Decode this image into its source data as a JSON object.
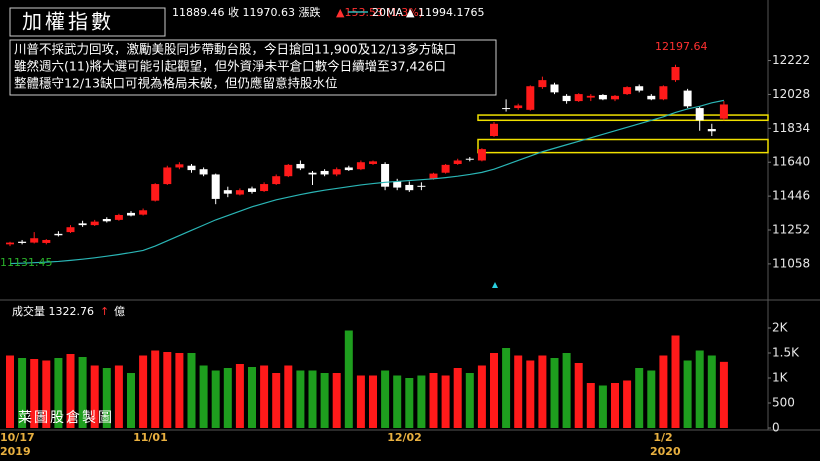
{
  "header": {
    "title": "加權指數",
    "quote_text": "11889.46 收 11970.63 漲跌",
    "change_text": "▲153.53 (1.3%)",
    "ma_value_text": "▲ 11994.1765"
  },
  "annotation": {
    "lines": [
      "川普不採武力回攻，激勵美股同步帶動台股，今日搶回11,900及12/13多方缺口",
      "雖然週六(11)將大選可能引起觀望，但外資淨未平倉口數今日續增至37,426口",
      "整體穩守12/13缺口可視為格局未破，但仍應留意持股水位"
    ]
  },
  "watermark": "菜圖股倉製圖",
  "chart_data": [
    {
      "type": "candlestick",
      "high_label": "12197.64",
      "ma_start_label": "11131.45",
      "year_labels": [
        "2019",
        "2020"
      ],
      "categories": [
        "10/17",
        null,
        null,
        null,
        null,
        null,
        null,
        null,
        null,
        null,
        null,
        "11/01",
        null,
        null,
        null,
        null,
        null,
        null,
        null,
        null,
        null,
        null,
        null,
        null,
        null,
        null,
        null,
        null,
        null,
        null,
        null,
        null,
        "12/02",
        null,
        null,
        null,
        null,
        null,
        null,
        null,
        null,
        null,
        null,
        null,
        null,
        null,
        null,
        null,
        null,
        null,
        null,
        null,
        null,
        null,
        "1/2",
        null,
        null,
        null,
        null,
        null
      ],
      "open": [
        11170,
        11185,
        11180,
        11178,
        11230,
        11240,
        11290,
        11280,
        11315,
        11310,
        11350,
        11340,
        11420,
        11515,
        11610,
        11620,
        11600,
        11570,
        11480,
        11455,
        11490,
        11475,
        11515,
        11560,
        11630,
        11580,
        11590,
        11570,
        11610,
        11600,
        11630,
        11630,
        11530,
        11510,
        11505,
        11545,
        11580,
        11630,
        11660,
        11650,
        11790,
        11950,
        11950,
        11940,
        12070,
        12085,
        12020,
        11990,
        12010,
        12025,
        12000,
        12030,
        12075,
        12020,
        12000,
        12110,
        12050,
        11950,
        11830,
        11889.46
      ],
      "high": [
        11185,
        11195,
        11240,
        11200,
        11245,
        11280,
        11305,
        11310,
        11325,
        11345,
        11360,
        11375,
        11520,
        11620,
        11640,
        11630,
        11610,
        11575,
        11500,
        11490,
        11500,
        11525,
        11570,
        11630,
        11650,
        11590,
        11600,
        11610,
        11620,
        11650,
        11650,
        11640,
        11545,
        11530,
        11525,
        11580,
        11630,
        11660,
        11670,
        11720,
        11870,
        12000,
        11975,
        12080,
        12130,
        12095,
        12030,
        12035,
        12030,
        12030,
        12025,
        12075,
        12085,
        12030,
        12080,
        12197.64,
        12060,
        11960,
        11860,
        11990
      ],
      "low": [
        11160,
        11170,
        11175,
        11170,
        11215,
        11235,
        11270,
        11275,
        11295,
        11305,
        11330,
        11335,
        11415,
        11510,
        11600,
        11580,
        11560,
        11400,
        11440,
        11450,
        11460,
        11470,
        11510,
        11555,
        11595,
        11510,
        11560,
        11560,
        11590,
        11595,
        11625,
        11480,
        11480,
        11470,
        11480,
        11540,
        11575,
        11625,
        11645,
        11645,
        11785,
        11930,
        11940,
        11935,
        12060,
        12030,
        11975,
        11985,
        11990,
        11995,
        11990,
        12025,
        12040,
        11995,
        11995,
        12100,
        11950,
        11820,
        11790,
        11880
      ],
      "close": [
        11180,
        11178,
        11205,
        11195,
        11222,
        11268,
        11280,
        11300,
        11302,
        11338,
        11335,
        11365,
        11515,
        11610,
        11628,
        11595,
        11570,
        11430,
        11460,
        11480,
        11470,
        11515,
        11560,
        11625,
        11605,
        11570,
        11570,
        11600,
        11595,
        11640,
        11645,
        11500,
        11495,
        11480,
        11500,
        11575,
        11625,
        11650,
        11655,
        11715,
        11860,
        11945,
        11965,
        12075,
        12110,
        12040,
        11990,
        12030,
        12020,
        12000,
        12020,
        12070,
        12050,
        12000,
        12075,
        12185,
        11960,
        11880,
        11817.1,
        11970.63
      ],
      "up_color": "#ff1a1a",
      "down_color": "#ffffff",
      "series": [
        {
          "name": "20MA",
          "color": "#2ab5b5",
          "values": [
            11060,
            11062,
            11065,
            11068,
            11072,
            11078,
            11085,
            11093,
            11102,
            11112,
            11123,
            11135,
            11160,
            11190,
            11220,
            11250,
            11280,
            11310,
            11335,
            11360,
            11385,
            11405,
            11425,
            11440,
            11455,
            11468,
            11480,
            11490,
            11500,
            11510,
            11518,
            11525,
            11530,
            11535,
            11540,
            11545,
            11552,
            11560,
            11570,
            11582,
            11600,
            11625,
            11650,
            11675,
            11700,
            11720,
            11740,
            11760,
            11780,
            11800,
            11820,
            11840,
            11860,
            11880,
            11900,
            11925,
            11945,
            11960,
            11980,
            11994.1765
          ]
        }
      ],
      "zones": [
        [
          11880,
          11910
        ],
        [
          11695,
          11770
        ]
      ],
      "zone_color": "#f0e000",
      "ylim": [
        10880,
        12540
      ],
      "yticks": [
        12222,
        12028,
        11834,
        11640,
        11446,
        11252,
        11058
      ]
    },
    {
      "type": "volume",
      "title": "成交量 1322.76",
      "arrow": "↑",
      "unit": "億",
      "values": [
        1450,
        1400,
        1380,
        1350,
        1400,
        1480,
        1420,
        1250,
        1200,
        1250,
        1100,
        1450,
        1550,
        1520,
        1500,
        1500,
        1250,
        1150,
        1200,
        1280,
        1220,
        1250,
        1100,
        1250,
        1150,
        1150,
        1100,
        1100,
        1950,
        1050,
        1050,
        1150,
        1050,
        1000,
        1050,
        1100,
        1050,
        1200,
        1100,
        1250,
        1500,
        1600,
        1450,
        1350,
        1450,
        1400,
        1500,
        1300,
        900,
        850,
        900,
        950,
        1200,
        1150,
        1450,
        1850,
        1350,
        1550,
        1450,
        1322.76
      ],
      "up_color": "#ff1a1a",
      "down_color": "#1e9e1e",
      "ylim": [
        0,
        2460
      ],
      "yticks": [
        {
          "value": 2000,
          "label": "2K"
        },
        {
          "value": 1500,
          "label": "1.5K"
        },
        {
          "value": 1000,
          "label": "1K"
        },
        500,
        0
      ]
    }
  ]
}
